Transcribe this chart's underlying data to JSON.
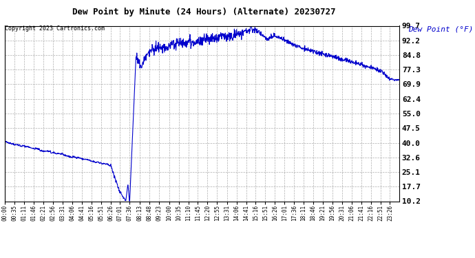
{
  "title": "Dew Point by Minute (24 Hours) (Alternate) 20230727",
  "copyright": "Copyright 2023 Cartronics.com",
  "legend_label": "Dew Point (°F)",
  "ylabel_ticks": [
    10.2,
    17.7,
    25.1,
    32.6,
    40.0,
    47.5,
    55.0,
    62.4,
    69.9,
    77.3,
    84.8,
    92.2,
    99.7
  ],
  "line_color": "#0000cc",
  "background_color": "#ffffff",
  "grid_color": "#aaaaaa",
  "title_color": "#000000",
  "legend_color": "#0000cc",
  "copyright_color": "#000000",
  "ylim": [
    10.2,
    99.7
  ],
  "total_minutes": 1440,
  "x_tick_labels": [
    "00:00",
    "00:35",
    "01:11",
    "01:46",
    "02:21",
    "02:56",
    "03:31",
    "04:06",
    "04:41",
    "05:16",
    "05:51",
    "06:26",
    "07:01",
    "07:36",
    "08:13",
    "08:48",
    "09:23",
    "10:00",
    "10:35",
    "11:10",
    "11:45",
    "12:20",
    "12:55",
    "13:31",
    "14:06",
    "14:41",
    "15:16",
    "15:51",
    "16:26",
    "17:01",
    "17:36",
    "18:11",
    "18:46",
    "19:21",
    "19:56",
    "20:31",
    "21:06",
    "21:41",
    "22:16",
    "22:51",
    "23:26"
  ]
}
